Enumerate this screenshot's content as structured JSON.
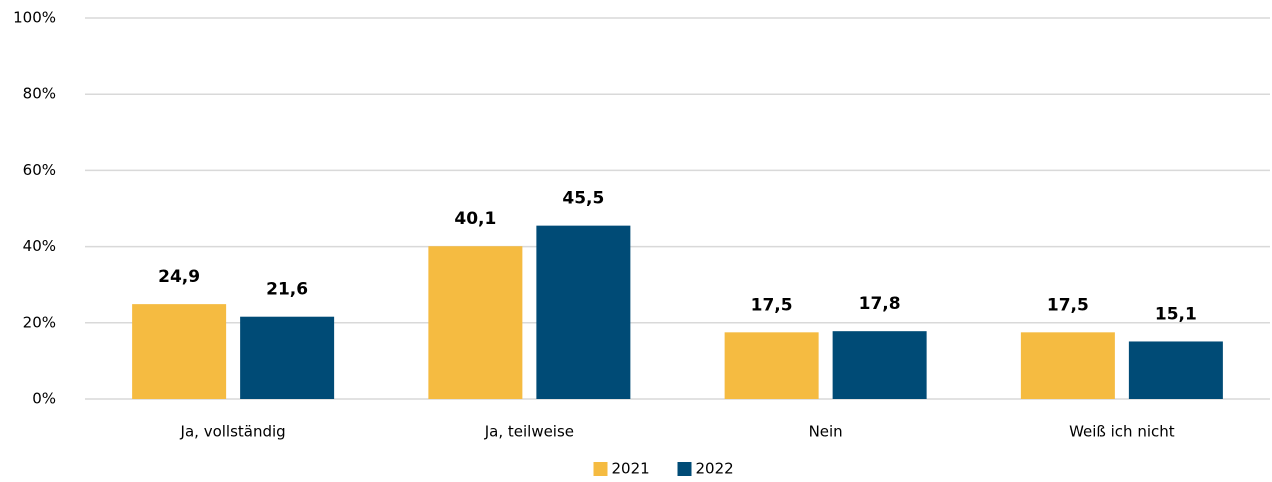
{
  "chart_data": {
    "type": "bar",
    "categories": [
      "Ja, vollständig",
      "Ja, teilweise",
      "Nein",
      "Weiß ich nicht"
    ],
    "series": [
      {
        "name": "2021",
        "color": "#f5bb41",
        "values": [
          24.9,
          40.1,
          17.5,
          17.5
        ],
        "value_labels": [
          "24,9",
          "40,1",
          "17,5",
          "17,5"
        ]
      },
      {
        "name": "2022",
        "color": "#004b76",
        "values": [
          21.6,
          45.5,
          17.8,
          15.1
        ],
        "value_labels": [
          "21,6",
          "45,5",
          "17,8",
          "15,1"
        ]
      }
    ],
    "ylim": [
      0,
      100
    ],
    "yticks": [
      {
        "value": 0,
        "label": "0%"
      },
      {
        "value": 20,
        "label": "20%"
      },
      {
        "value": 40,
        "label": "40%"
      },
      {
        "value": 60,
        "label": "60%"
      },
      {
        "value": 80,
        "label": "80%"
      },
      {
        "value": 100,
        "label": "100%"
      }
    ],
    "grid": true,
    "legend": "bottom"
  }
}
